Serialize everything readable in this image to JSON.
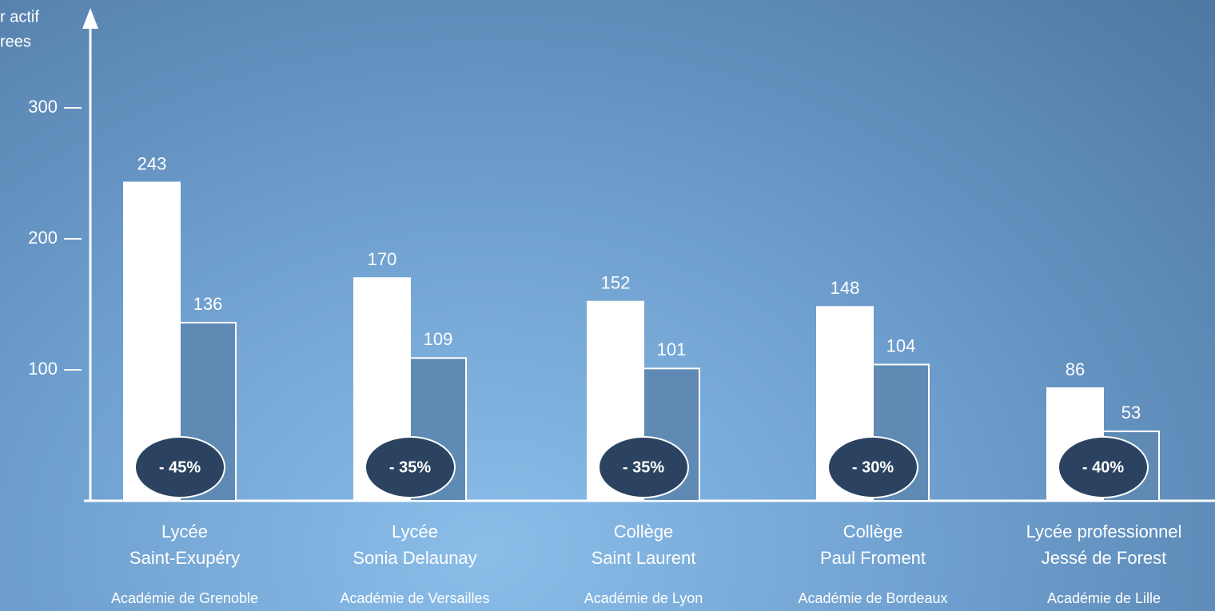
{
  "chart_data": {
    "type": "bar",
    "y_label_lines": [
      "r actif",
      "rees"
    ],
    "categories": [
      [
        "Lycée",
        "Saint-Exupéry"
      ],
      [
        "Lycée",
        "Sonia Delaunay"
      ],
      [
        "Collège",
        "Saint Laurent"
      ],
      [
        "Collège",
        "Paul Froment"
      ],
      [
        "Lycée professionnel",
        "Jessé de Forest"
      ]
    ],
    "academies": [
      "Académie de Grenoble",
      "Académie de Versailles",
      "Académie de Lyon",
      "Académie de Bordeaux",
      "Académie de Lille"
    ],
    "series": [
      {
        "color": "#ffffff",
        "values": [
          243,
          170,
          152,
          148,
          86
        ]
      },
      {
        "color": "#5f8ab4",
        "values": [
          136,
          109,
          101,
          104,
          53
        ]
      }
    ],
    "badges": [
      "- 45%",
      "- 35%",
      "- 35%",
      "- 30%",
      "- 40%"
    ],
    "ylim": [
      0,
      375
    ],
    "yticks": [
      100,
      200,
      300
    ]
  }
}
